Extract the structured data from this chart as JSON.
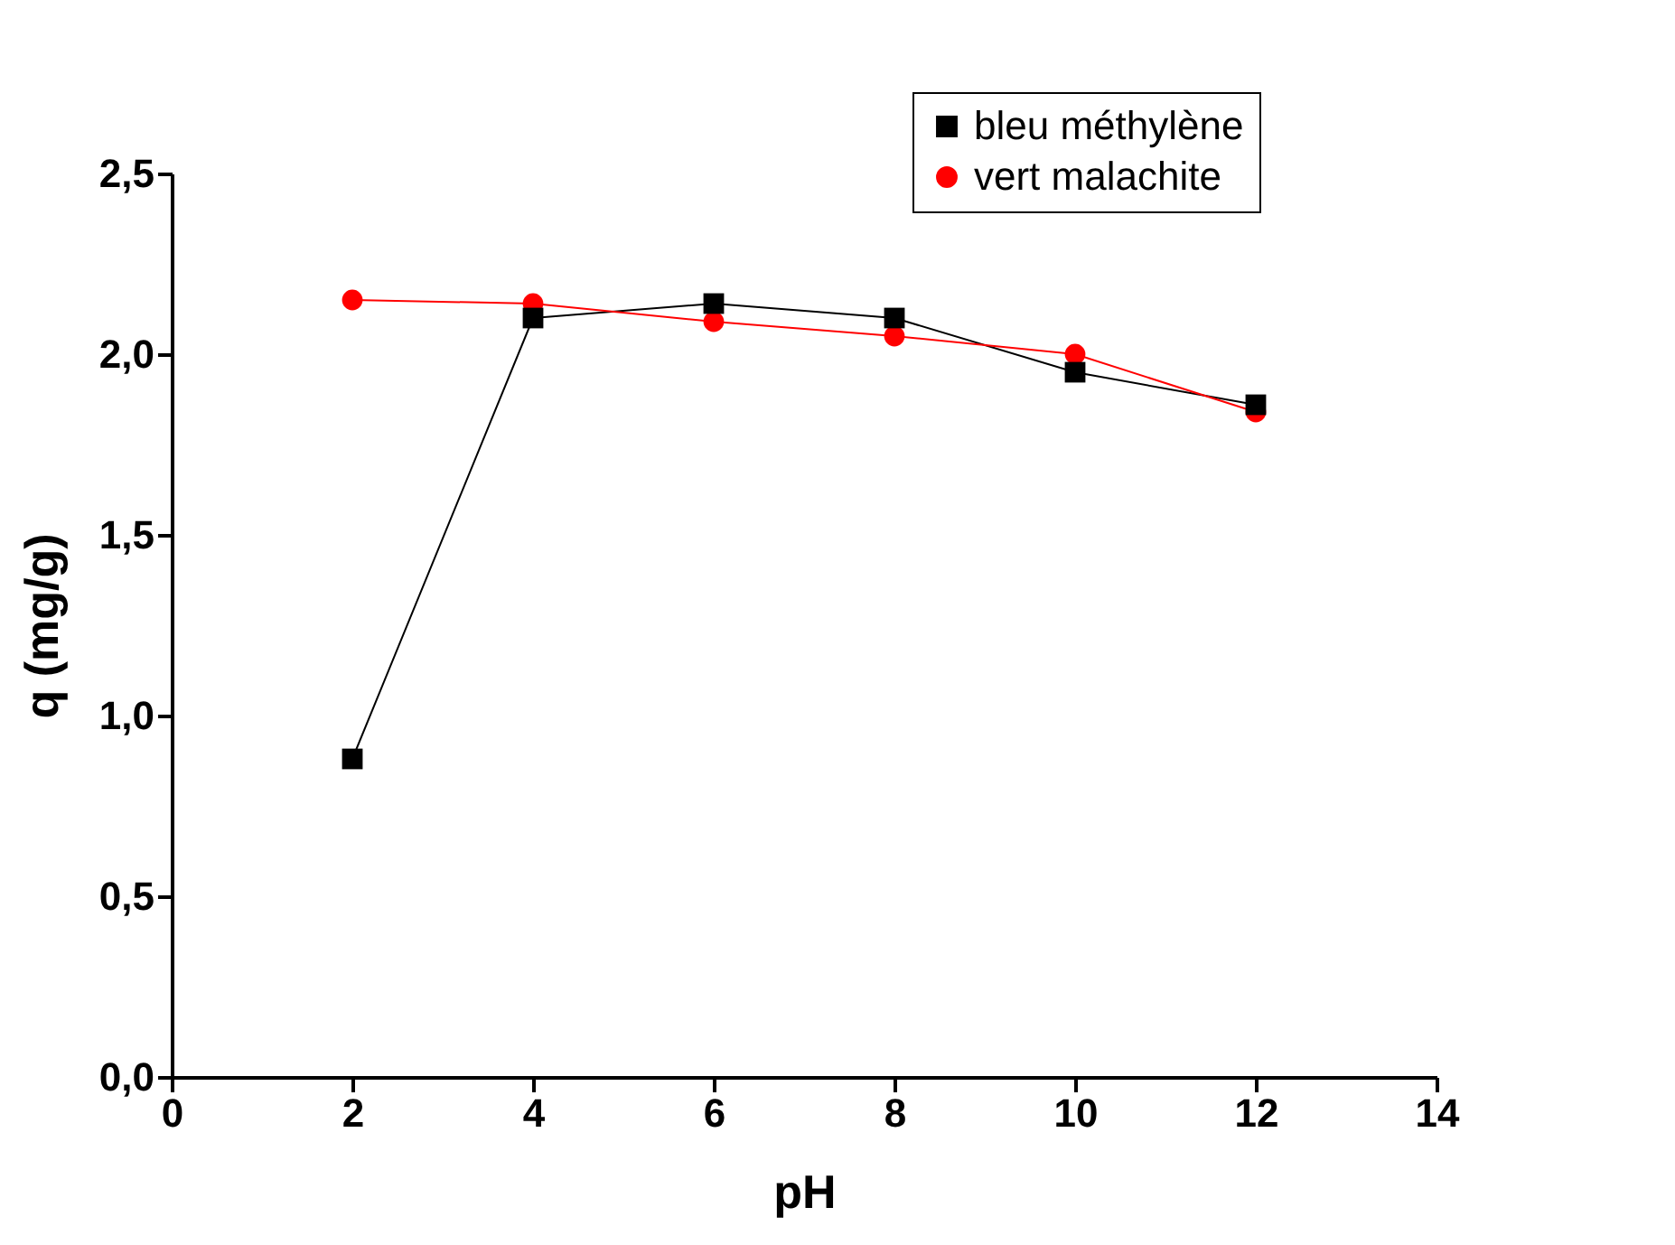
{
  "chart_data": {
    "type": "line",
    "xlabel": "pH",
    "ylabel": "q (mg/g)",
    "x": [
      2,
      4,
      6,
      8,
      10,
      12
    ],
    "series": [
      {
        "name": "bleu méthylène",
        "color": "#000000",
        "marker": "square",
        "values": [
          0.88,
          2.1,
          2.14,
          2.1,
          1.95,
          1.86
        ]
      },
      {
        "name": "vert malachite",
        "color": "#ff0000",
        "marker": "circle",
        "values": [
          2.15,
          2.14,
          2.09,
          2.05,
          2.0,
          1.84
        ]
      }
    ],
    "xlim": [
      0,
      14
    ],
    "xticks": [
      0,
      2,
      4,
      6,
      8,
      10,
      12,
      14
    ],
    "ylim": [
      0,
      2.5
    ],
    "yticks": [
      {
        "value": 0,
        "label": "0,0"
      },
      {
        "value": 0.5,
        "label": "0,5"
      },
      {
        "value": 1,
        "label": "1,0"
      },
      {
        "value": 1.5,
        "label": "1,5"
      },
      {
        "value": 2,
        "label": "2,0"
      },
      {
        "value": 2.5,
        "label": "2,5"
      }
    ],
    "grid": false,
    "legend": "top right"
  }
}
